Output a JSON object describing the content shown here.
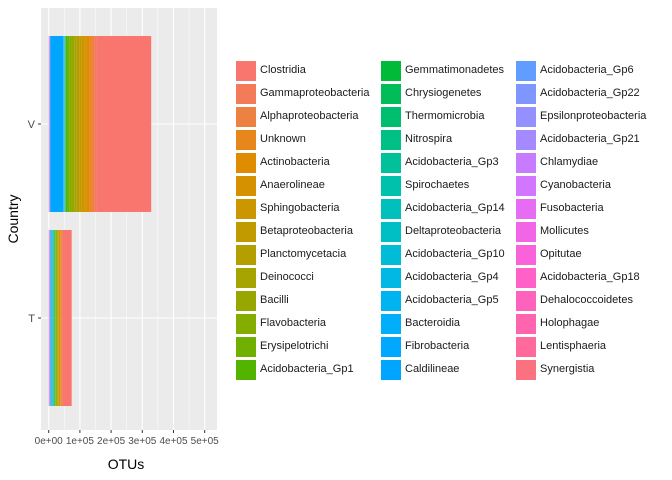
{
  "chart_data": {
    "type": "bar",
    "orientation": "horizontal",
    "stacked": true,
    "xlabel": "OTUs",
    "ylabel": "Country",
    "xlim": [
      0,
      500000
    ],
    "x_ticks": [
      0,
      100000,
      200000,
      300000,
      400000,
      500000
    ],
    "x_tick_labels": [
      "0e+00",
      "1e+05",
      "2e+05",
      "3e+05",
      "4e+05",
      "5e+05"
    ],
    "categories": [
      "T",
      "V"
    ],
    "grid": true,
    "legend_position": "right",
    "series": [
      {
        "name": "Clostridia",
        "color": "#F8766D",
        "values": [
          29000,
          175000
        ]
      },
      {
        "name": "Gammaproteobacteria",
        "color": "#F37B59",
        "values": [
          2000,
          8000
        ]
      },
      {
        "name": "Alphaproteobacteria",
        "color": "#ED8141",
        "values": [
          2000,
          8000
        ]
      },
      {
        "name": "Unknown",
        "color": "#E7861B",
        "values": [
          2000,
          8000
        ]
      },
      {
        "name": "Actinobacteria",
        "color": "#DF8C00",
        "values": [
          2000,
          8000
        ]
      },
      {
        "name": "Anaerolineae",
        "color": "#D69100",
        "values": [
          2000,
          8000
        ]
      },
      {
        "name": "Sphingobacteria",
        "color": "#CC9600",
        "values": [
          2000,
          8000
        ]
      },
      {
        "name": "Betaproteobacteria",
        "color": "#C19A00",
        "values": [
          2000,
          8000
        ]
      },
      {
        "name": "Planctomycetacia",
        "color": "#B49F00",
        "values": [
          2000,
          8000
        ]
      },
      {
        "name": "Deinococci",
        "color": "#A6A400",
        "values": [
          2000,
          8000
        ]
      },
      {
        "name": "Bacilli",
        "color": "#97A700",
        "values": [
          2000,
          7000
        ]
      },
      {
        "name": "Flavobacteria",
        "color": "#85AD00",
        "values": [
          2000,
          7000
        ]
      },
      {
        "name": "Erysipelotrichi",
        "color": "#6FB000",
        "values": [
          2000,
          7000
        ]
      },
      {
        "name": "Acidobacteria_Gp1",
        "color": "#53B400",
        "values": [
          1000,
          6000
        ]
      },
      {
        "name": "Gemmatimonadetes",
        "color": "#00BA38",
        "values": [
          1000,
          500
        ]
      },
      {
        "name": "Chrysiogenetes",
        "color": "#00BC59",
        "values": [
          1000,
          500
        ]
      },
      {
        "name": "Thermomicrobia",
        "color": "#00BE70",
        "values": [
          1000,
          500
        ]
      },
      {
        "name": "Nitrospira",
        "color": "#00C086",
        "values": [
          1000,
          500
        ]
      },
      {
        "name": "Acidobacteria_Gp3",
        "color": "#00C19A",
        "values": [
          1000,
          500
        ]
      },
      {
        "name": "Spirochaetes",
        "color": "#00C1AB",
        "values": [
          1000,
          500
        ]
      },
      {
        "name": "Acidobacteria_Gp14",
        "color": "#00C0BB",
        "values": [
          1000,
          500
        ]
      },
      {
        "name": "Deltaproteobacteria",
        "color": "#00BFC4",
        "values": [
          1000,
          500
        ]
      },
      {
        "name": "Acidobacteria_Gp10",
        "color": "#00BCD6",
        "values": [
          1000,
          500
        ]
      },
      {
        "name": "Acidobacteria_Gp4",
        "color": "#00B8E3",
        "values": [
          1000,
          1000
        ]
      },
      {
        "name": "Acidobacteria_Gp5",
        "color": "#00B4EF",
        "values": [
          1000,
          1000
        ]
      },
      {
        "name": "Bacteroidia",
        "color": "#00AEFA",
        "values": [
          1000,
          1000
        ]
      },
      {
        "name": "Fibrobacteria",
        "color": "#00A9FF",
        "values": [
          1000,
          1000
        ]
      },
      {
        "name": "Caldilineae",
        "color": "#00A5FF",
        "values": [
          1000,
          41000
        ]
      },
      {
        "name": "Acidobacteria_Gp6",
        "color": "#619CFF",
        "values": [
          1000,
          800
        ]
      },
      {
        "name": "Acidobacteria_Gp22",
        "color": "#7F96FF",
        "values": [
          1000,
          600
        ]
      },
      {
        "name": "Epsilonproteobacteria",
        "color": "#9590FF",
        "values": [
          300,
          300
        ]
      },
      {
        "name": "Acidobacteria_Gp21",
        "color": "#A58AFF",
        "values": [
          300,
          300
        ]
      },
      {
        "name": "Chlamydiae",
        "color": "#C77CFF",
        "values": [
          300,
          300
        ]
      },
      {
        "name": "Cyanobacteria",
        "color": "#D376FF",
        "values": [
          300,
          300
        ]
      },
      {
        "name": "Fusobacteria",
        "color": "#E76BF3",
        "values": [
          300,
          300
        ]
      },
      {
        "name": "Mollicutes",
        "color": "#F265E7",
        "values": [
          300,
          300
        ]
      },
      {
        "name": "Opitutae",
        "color": "#FA62DB",
        "values": [
          300,
          300
        ]
      },
      {
        "name": "Acidobacteria_Gp18",
        "color": "#FF61C9",
        "values": [
          300,
          300
        ]
      },
      {
        "name": "Dehalococcoidetes",
        "color": "#FF62BC",
        "values": [
          300,
          300
        ]
      },
      {
        "name": "Holophagae",
        "color": "#FF65AE",
        "values": [
          300,
          300
        ]
      },
      {
        "name": "Lentisphaeria",
        "color": "#FF699C",
        "values": [
          300,
          300
        ]
      },
      {
        "name": "Synergistia",
        "color": "#FC717F",
        "values": [
          300,
          300
        ]
      }
    ]
  }
}
